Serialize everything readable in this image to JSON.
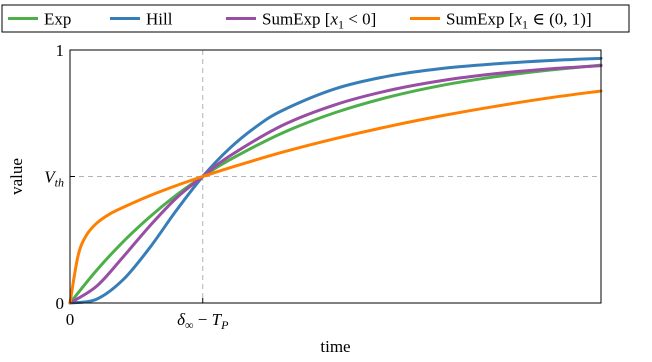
{
  "chart_data": {
    "type": "line",
    "xlabel": "time",
    "ylabel": "value",
    "xlim": [
      0,
      10
    ],
    "ylim": [
      0,
      1
    ],
    "x_ticks": [
      {
        "value": 0,
        "label": "0"
      },
      {
        "value": 2.5,
        "label_main": "δ",
        "label_sub": "∞",
        "label_rest": " − T",
        "label_sub2": "P"
      }
    ],
    "y_ticks": [
      {
        "value": 0,
        "label": "0"
      },
      {
        "value": 0.5,
        "label_main": "V",
        "label_sub": "th"
      },
      {
        "value": 1,
        "label": "1"
      }
    ],
    "reference_lines": {
      "x": 2.5,
      "y": 0.5
    },
    "legend_position": "top",
    "series": [
      {
        "name": "Exp",
        "color": "#4daf4a",
        "x": [
          0,
          0.5,
          1,
          1.5,
          2,
          2.5,
          3,
          4,
          5,
          6,
          7,
          8,
          9,
          10
        ],
        "y": [
          0,
          0.129,
          0.242,
          0.34,
          0.426,
          0.5,
          0.565,
          0.672,
          0.753,
          0.814,
          0.86,
          0.894,
          0.92,
          0.94
        ]
      },
      {
        "name": "Hill",
        "color": "#377eb8",
        "x": [
          0,
          0.5,
          1,
          1.5,
          2,
          2.5,
          3,
          3.5,
          4,
          5,
          6,
          7,
          8,
          9,
          10
        ],
        "y": [
          0,
          0.015,
          0.092,
          0.218,
          0.365,
          0.5,
          0.61,
          0.696,
          0.761,
          0.847,
          0.897,
          0.927,
          0.945,
          0.958,
          0.967
        ]
      },
      {
        "name": "SumExp [x1 < 0]",
        "name_parts": {
          "pre": "SumExp [",
          "var": "x",
          "sub": "1",
          "post": " < 0]"
        },
        "color": "#984ea3",
        "x": [
          0,
          0.5,
          1,
          1.5,
          2,
          2.5,
          3,
          4,
          5,
          6,
          7,
          8,
          9,
          10
        ],
        "y": [
          0,
          0.066,
          0.182,
          0.304,
          0.414,
          0.5,
          0.58,
          0.702,
          0.784,
          0.84,
          0.879,
          0.906,
          0.925,
          0.938
        ]
      },
      {
        "name": "SumExp [x1 ∈ (0, 1)]",
        "name_parts": {
          "pre": "SumExp [",
          "var": "x",
          "sub": "1",
          "post": " ∈ (0, 1)]"
        },
        "color": "#ff7f00",
        "x": [
          0,
          0.15,
          0.3,
          0.5,
          0.75,
          1,
          1.5,
          2,
          2.5,
          3,
          4,
          5,
          6,
          7,
          8,
          9,
          10
        ],
        "y": [
          0,
          0.185,
          0.265,
          0.315,
          0.352,
          0.378,
          0.424,
          0.464,
          0.5,
          0.534,
          0.596,
          0.65,
          0.698,
          0.74,
          0.777,
          0.81,
          0.838
        ]
      }
    ]
  }
}
